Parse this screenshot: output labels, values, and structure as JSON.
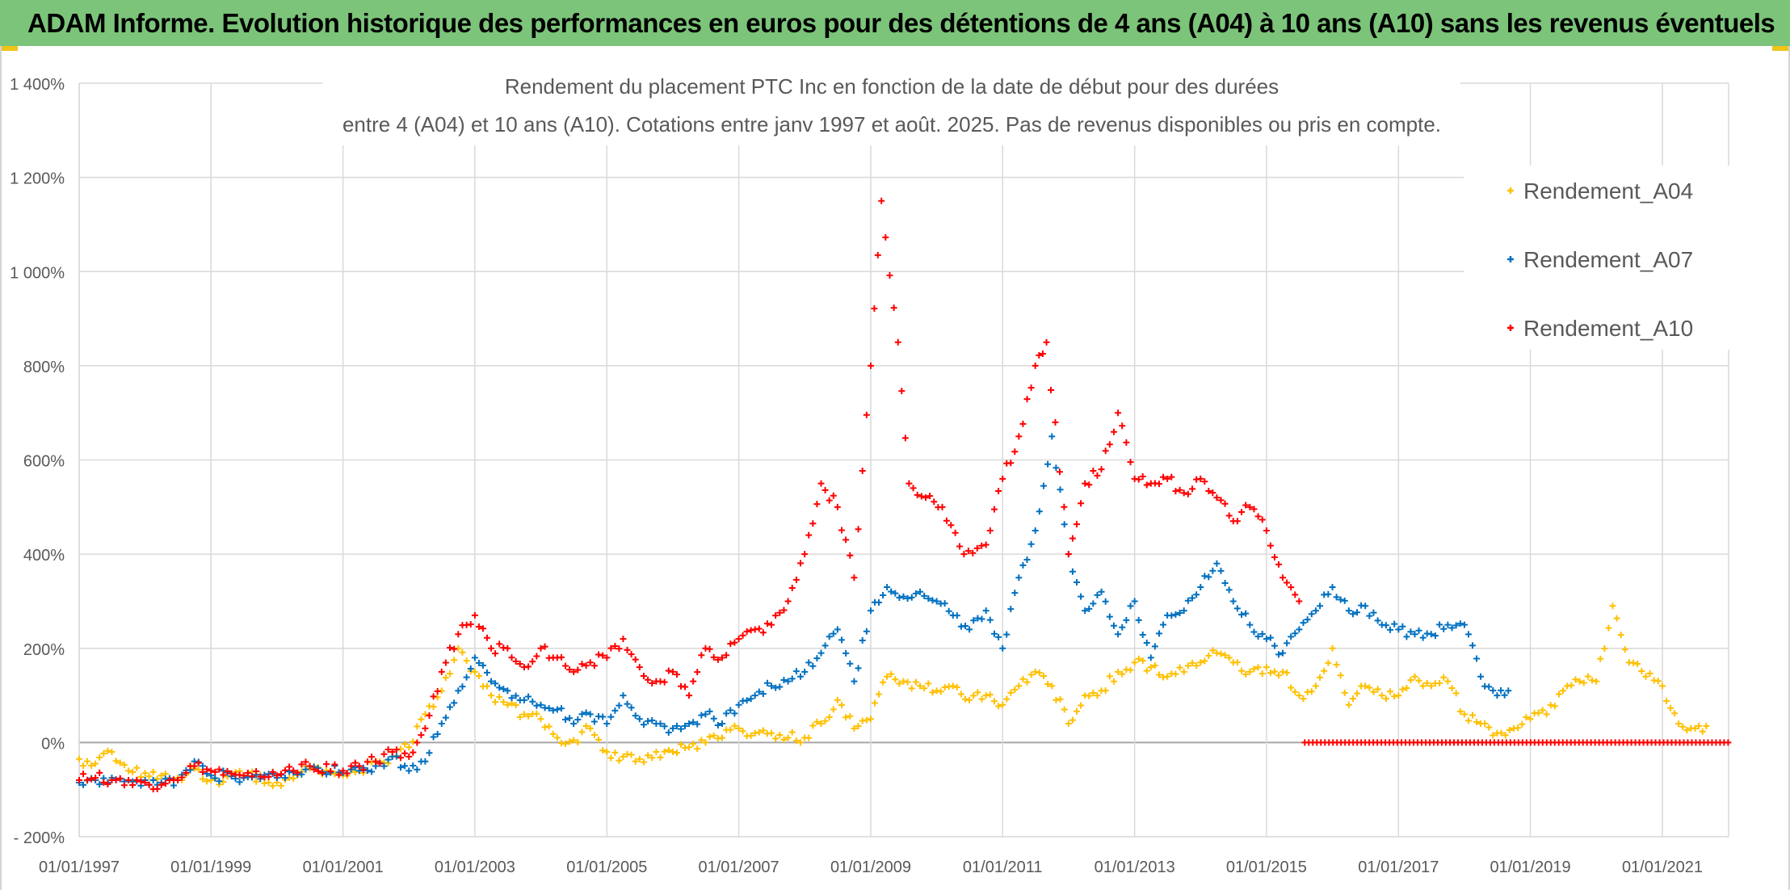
{
  "header": {
    "title": "ADAM Informe. Evolution historique des performances en euros pour des détentions de 4 ans (A04) à 10 ans (A10) sans les revenus éventuels"
  },
  "colors": {
    "a04": "#ffc000",
    "a07": "#0070c0",
    "a10": "#ff0000",
    "header_bg": "#7cc47a"
  },
  "chart_data": {
    "type": "scatter",
    "title_line1": "Rendement du placement PTC Inc en fonction de la date de début pour des durées",
    "title_line2": "entre 4 (A04) et 10 ans (A10). Cotations entre janv 1997 et août. 2025. Pas de revenus disponibles ou pris en compte.",
    "xlabel": "",
    "ylabel": "",
    "xlim": [
      "1997-01-01",
      "2022-01-01"
    ],
    "ylim": [
      -200,
      1400
    ],
    "y_ticks": [
      {
        "value": 1400,
        "label": "1 400%"
      },
      {
        "value": 1200,
        "label": "1 200%"
      },
      {
        "value": 1000,
        "label": "1 000%"
      },
      {
        "value": 800,
        "label": "800%"
      },
      {
        "value": 600,
        "label": "600%"
      },
      {
        "value": 400,
        "label": "400%"
      },
      {
        "value": 200,
        "label": "200%"
      },
      {
        "value": 0,
        "label": "0%"
      },
      {
        "value": -200,
        "label": "- 200%"
      }
    ],
    "x_ticks": [
      {
        "date": "1997-01-01",
        "label": "01/01/1997"
      },
      {
        "date": "1999-01-01",
        "label": "01/01/1999"
      },
      {
        "date": "2001-01-01",
        "label": "01/01/2001"
      },
      {
        "date": "2003-01-01",
        "label": "01/01/2003"
      },
      {
        "date": "2005-01-01",
        "label": "01/01/2005"
      },
      {
        "date": "2007-01-01",
        "label": "01/01/2007"
      },
      {
        "date": "2009-01-01",
        "label": "01/01/2009"
      },
      {
        "date": "2011-01-01",
        "label": "01/01/2011"
      },
      {
        "date": "2013-01-01",
        "label": "01/01/2013"
      },
      {
        "date": "2015-01-01",
        "label": "01/01/2015"
      },
      {
        "date": "2017-01-01",
        "label": "01/01/2017"
      },
      {
        "date": "2019-01-01",
        "label": "01/01/2019"
      },
      {
        "date": "2021-01-01",
        "label": "01/01/2021"
      }
    ],
    "grid": true,
    "legend": "top-right",
    "marker": "+",
    "series": [
      {
        "name": "Rendement_A04",
        "color": "#ffc000",
        "points": [
          [
            "1997-01-01",
            -35
          ],
          [
            "1997-04-01",
            -45
          ],
          [
            "1997-07-01",
            -20
          ],
          [
            "1997-10-01",
            -60
          ],
          [
            "1998-01-01",
            -65
          ],
          [
            "1998-04-01",
            -70
          ],
          [
            "1998-07-01",
            -75
          ],
          [
            "1998-10-01",
            -55
          ],
          [
            "1999-01-01",
            -80
          ],
          [
            "1999-07-01",
            -70
          ],
          [
            "2000-01-01",
            -85
          ],
          [
            "2000-07-01",
            -55
          ],
          [
            "2001-01-01",
            -70
          ],
          [
            "2001-04-01",
            -60
          ],
          [
            "2001-07-01",
            -40
          ],
          [
            "2001-10-01",
            -30
          ],
          [
            "2002-01-01",
            -10
          ],
          [
            "2002-04-01",
            60
          ],
          [
            "2002-07-01",
            110
          ],
          [
            "2002-10-01",
            200
          ],
          [
            "2003-01-01",
            150
          ],
          [
            "2003-04-01",
            100
          ],
          [
            "2003-07-01",
            80
          ],
          [
            "2003-10-01",
            60
          ],
          [
            "2004-01-01",
            50
          ],
          [
            "2004-04-01",
            10
          ],
          [
            "2004-07-01",
            5
          ],
          [
            "2004-10-01",
            30
          ],
          [
            "2005-01-01",
            -20
          ],
          [
            "2005-04-01",
            -30
          ],
          [
            "2005-07-01",
            -35
          ],
          [
            "2005-10-01",
            -20
          ],
          [
            "2006-01-01",
            -20
          ],
          [
            "2006-04-01",
            -10
          ],
          [
            "2006-07-01",
            0
          ],
          [
            "2006-10-01",
            10
          ],
          [
            "2007-01-01",
            30
          ],
          [
            "2007-04-01",
            20
          ],
          [
            "2007-07-01",
            20
          ],
          [
            "2007-10-01",
            10
          ],
          [
            "2008-01-01",
            10
          ],
          [
            "2008-04-01",
            40
          ],
          [
            "2008-07-01",
            90
          ],
          [
            "2008-10-01",
            30
          ],
          [
            "2009-01-01",
            50
          ],
          [
            "2009-04-01",
            140
          ],
          [
            "2009-07-01",
            130
          ],
          [
            "2009-10-01",
            120
          ],
          [
            "2010-01-01",
            110
          ],
          [
            "2010-04-01",
            120
          ],
          [
            "2010-07-01",
            90
          ],
          [
            "2010-10-01",
            100
          ],
          [
            "2011-01-01",
            80
          ],
          [
            "2011-04-01",
            120
          ],
          [
            "2011-07-01",
            150
          ],
          [
            "2011-10-01",
            120
          ],
          [
            "2012-01-01",
            40
          ],
          [
            "2012-04-01",
            100
          ],
          [
            "2012-07-01",
            110
          ],
          [
            "2012-10-01",
            150
          ],
          [
            "2013-01-01",
            170
          ],
          [
            "2013-04-01",
            160
          ],
          [
            "2013-07-01",
            140
          ],
          [
            "2013-10-01",
            150
          ],
          [
            "2014-01-01",
            170
          ],
          [
            "2014-04-01",
            190
          ],
          [
            "2014-07-01",
            170
          ],
          [
            "2014-10-01",
            150
          ],
          [
            "2015-01-01",
            160
          ],
          [
            "2015-04-01",
            150
          ],
          [
            "2015-07-01",
            100
          ],
          [
            "2015-10-01",
            120
          ],
          [
            "2016-01-01",
            200
          ],
          [
            "2016-04-01",
            80
          ],
          [
            "2016-07-01",
            120
          ],
          [
            "2016-10-01",
            100
          ],
          [
            "2017-01-01",
            100
          ],
          [
            "2017-04-01",
            140
          ],
          [
            "2017-07-01",
            120
          ],
          [
            "2017-10-01",
            130
          ],
          [
            "2018-01-01",
            60
          ],
          [
            "2018-04-01",
            40
          ],
          [
            "2018-07-01",
            20
          ],
          [
            "2018-10-01",
            30
          ],
          [
            "2019-01-01",
            50
          ],
          [
            "2019-04-01",
            60
          ],
          [
            "2019-07-01",
            110
          ],
          [
            "2019-10-01",
            130
          ],
          [
            "2020-01-01",
            130
          ],
          [
            "2020-04-01",
            290
          ],
          [
            "2020-07-01",
            170
          ],
          [
            "2020-10-01",
            140
          ],
          [
            "2021-01-01",
            120
          ],
          [
            "2021-04-01",
            40
          ],
          [
            "2021-07-01",
            30
          ],
          [
            "2021-09-01",
            35
          ]
        ]
      },
      {
        "name": "Rendement_A07",
        "color": "#0070c0",
        "points": [
          [
            "1997-01-01",
            -85
          ],
          [
            "1997-04-01",
            -80
          ],
          [
            "1997-07-01",
            -75
          ],
          [
            "1997-10-01",
            -80
          ],
          [
            "1998-01-01",
            -80
          ],
          [
            "1998-04-01",
            -85
          ],
          [
            "1998-07-01",
            -80
          ],
          [
            "1998-10-01",
            -40
          ],
          [
            "1999-01-01",
            -70
          ],
          [
            "1999-07-01",
            -75
          ],
          [
            "2000-01-01",
            -75
          ],
          [
            "2000-07-01",
            -50
          ],
          [
            "2001-01-01",
            -65
          ],
          [
            "2001-04-01",
            -60
          ],
          [
            "2001-07-01",
            -50
          ],
          [
            "2001-10-01",
            -30
          ],
          [
            "2002-01-01",
            -60
          ],
          [
            "2002-04-01",
            -40
          ],
          [
            "2002-07-01",
            40
          ],
          [
            "2002-10-01",
            110
          ],
          [
            "2003-01-01",
            180
          ],
          [
            "2003-04-01",
            130
          ],
          [
            "2003-07-01",
            110
          ],
          [
            "2003-10-01",
            90
          ],
          [
            "2004-01-01",
            80
          ],
          [
            "2004-04-01",
            70
          ],
          [
            "2004-07-01",
            40
          ],
          [
            "2004-10-01",
            60
          ],
          [
            "2005-01-01",
            40
          ],
          [
            "2005-04-01",
            100
          ],
          [
            "2005-07-01",
            50
          ],
          [
            "2005-10-01",
            40
          ],
          [
            "2006-01-01",
            30
          ],
          [
            "2006-04-01",
            40
          ],
          [
            "2006-07-01",
            60
          ],
          [
            "2006-10-01",
            40
          ],
          [
            "2007-01-01",
            80
          ],
          [
            "2007-04-01",
            100
          ],
          [
            "2007-07-01",
            120
          ],
          [
            "2007-10-01",
            130
          ],
          [
            "2008-01-01",
            150
          ],
          [
            "2008-04-01",
            190
          ],
          [
            "2008-07-01",
            240
          ],
          [
            "2008-10-01",
            130
          ],
          [
            "2009-01-01",
            280
          ],
          [
            "2009-04-01",
            330
          ],
          [
            "2009-07-01",
            310
          ],
          [
            "2009-10-01",
            320
          ],
          [
            "2010-01-01",
            300
          ],
          [
            "2010-04-01",
            270
          ],
          [
            "2010-07-01",
            240
          ],
          [
            "2010-10-01",
            280
          ],
          [
            "2011-01-01",
            200
          ],
          [
            "2011-04-01",
            350
          ],
          [
            "2011-07-01",
            450
          ],
          [
            "2011-10-01",
            650
          ],
          [
            "2012-01-01",
            400
          ],
          [
            "2012-04-01",
            280
          ],
          [
            "2012-07-01",
            320
          ],
          [
            "2012-10-01",
            230
          ],
          [
            "2013-01-01",
            300
          ],
          [
            "2013-04-01",
            180
          ],
          [
            "2013-07-01",
            270
          ],
          [
            "2013-10-01",
            280
          ],
          [
            "2014-01-01",
            330
          ],
          [
            "2014-04-01",
            380
          ],
          [
            "2014-07-01",
            300
          ],
          [
            "2014-10-01",
            250
          ],
          [
            "2015-01-01",
            220
          ],
          [
            "2015-04-01",
            190
          ],
          [
            "2015-07-01",
            240
          ],
          [
            "2015-10-01",
            280
          ],
          [
            "2016-01-01",
            330
          ],
          [
            "2016-04-01",
            280
          ],
          [
            "2016-07-01",
            290
          ],
          [
            "2016-10-01",
            250
          ],
          [
            "2017-01-01",
            240
          ],
          [
            "2017-04-01",
            230
          ],
          [
            "2017-07-01",
            230
          ],
          [
            "2017-10-01",
            250
          ],
          [
            "2018-01-01",
            250
          ],
          [
            "2018-04-01",
            140
          ],
          [
            "2018-07-01",
            100
          ],
          [
            "2018-09-01",
            110
          ]
        ]
      },
      {
        "name": "Rendement_A10",
        "color": "#ff0000",
        "points": [
          [
            "1997-01-01",
            -80
          ],
          [
            "1997-04-01",
            -75
          ],
          [
            "1997-07-01",
            -80
          ],
          [
            "1997-10-01",
            -80
          ],
          [
            "1998-01-01",
            -85
          ],
          [
            "1998-04-01",
            -90
          ],
          [
            "1998-07-01",
            -80
          ],
          [
            "1998-10-01",
            -50
          ],
          [
            "1999-01-01",
            -60
          ],
          [
            "1999-07-01",
            -70
          ],
          [
            "2000-01-01",
            -70
          ],
          [
            "2000-07-01",
            -50
          ],
          [
            "2001-01-01",
            -60
          ],
          [
            "2001-04-01",
            -50
          ],
          [
            "2001-07-01",
            -40
          ],
          [
            "2001-10-01",
            -20
          ],
          [
            "2002-01-01",
            -30
          ],
          [
            "2002-04-01",
            30
          ],
          [
            "2002-07-01",
            150
          ],
          [
            "2002-10-01",
            230
          ],
          [
            "2003-01-01",
            270
          ],
          [
            "2003-04-01",
            200
          ],
          [
            "2003-07-01",
            200
          ],
          [
            "2003-10-01",
            160
          ],
          [
            "2004-01-01",
            200
          ],
          [
            "2004-04-01",
            180
          ],
          [
            "2004-07-01",
            150
          ],
          [
            "2004-10-01",
            170
          ],
          [
            "2005-01-01",
            180
          ],
          [
            "2005-04-01",
            220
          ],
          [
            "2005-07-01",
            160
          ],
          [
            "2005-10-01",
            130
          ],
          [
            "2006-01-01",
            150
          ],
          [
            "2006-04-01",
            100
          ],
          [
            "2006-07-01",
            200
          ],
          [
            "2006-10-01",
            180
          ],
          [
            "2007-01-01",
            220
          ],
          [
            "2007-04-01",
            240
          ],
          [
            "2007-07-01",
            250
          ],
          [
            "2007-10-01",
            300
          ],
          [
            "2008-01-01",
            400
          ],
          [
            "2008-04-01",
            550
          ],
          [
            "2008-07-01",
            500
          ],
          [
            "2008-10-01",
            350
          ],
          [
            "2009-01-01",
            800
          ],
          [
            "2009-03-01",
            1150
          ],
          [
            "2009-06-01",
            850
          ],
          [
            "2009-08-01",
            550
          ],
          [
            "2009-11-01",
            520
          ],
          [
            "2010-02-01",
            500
          ],
          [
            "2010-06-01",
            400
          ],
          [
            "2010-10-01",
            420
          ],
          [
            "2011-01-01",
            560
          ],
          [
            "2011-04-01",
            650
          ],
          [
            "2011-07-01",
            800
          ],
          [
            "2011-09-01",
            850
          ],
          [
            "2012-01-01",
            400
          ],
          [
            "2012-04-01",
            550
          ],
          [
            "2012-07-01",
            580
          ],
          [
            "2012-10-01",
            700
          ],
          [
            "2013-01-01",
            560
          ],
          [
            "2013-04-01",
            550
          ],
          [
            "2013-07-01",
            560
          ],
          [
            "2013-10-01",
            530
          ],
          [
            "2014-01-01",
            560
          ],
          [
            "2014-04-01",
            520
          ],
          [
            "2014-07-01",
            470
          ],
          [
            "2014-10-01",
            500
          ],
          [
            "2015-01-01",
            450
          ],
          [
            "2015-04-01",
            350
          ],
          [
            "2015-07-01",
            300
          ]
        ]
      },
      {
        "name": "",
        "color": "#ff0000",
        "points": [
          [
            "2015-08-01",
            0
          ],
          [
            "2021-12-31",
            0
          ]
        ]
      }
    ]
  }
}
